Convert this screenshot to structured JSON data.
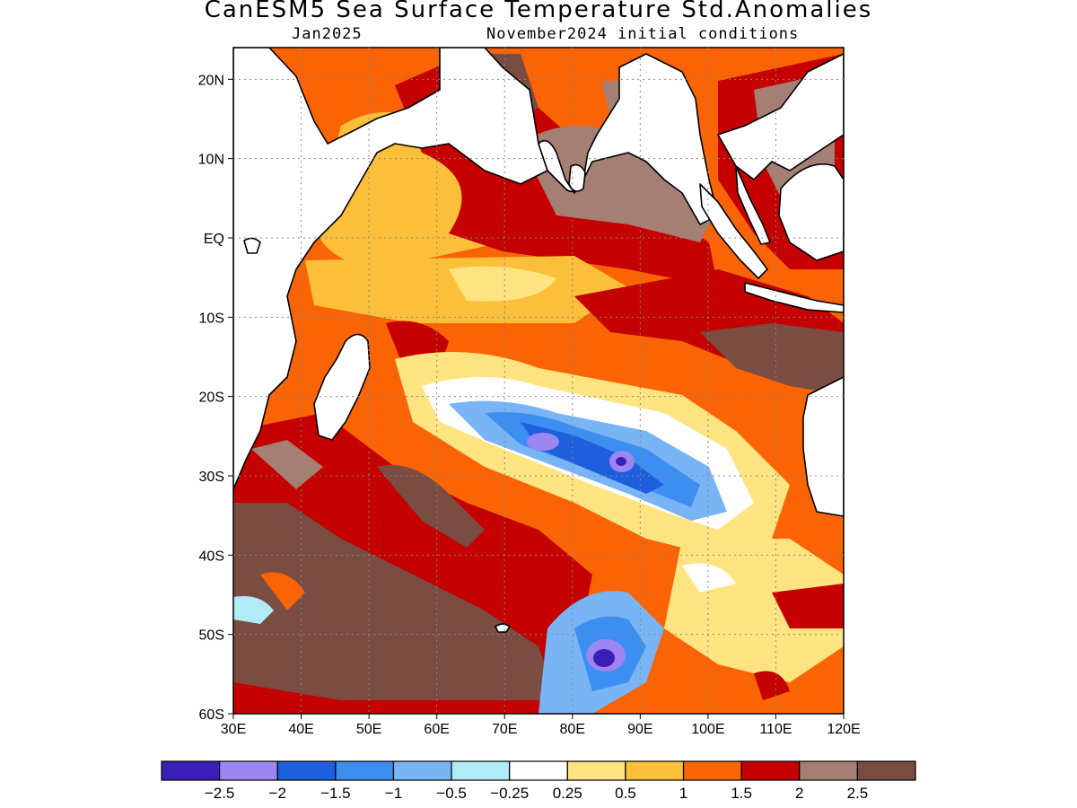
{
  "title": "CanESM5 Sea Surface Temperature Std.Anomalies",
  "subtitle_left": "Jan2025",
  "subtitle_right": "November2024 initial conditions",
  "map": {
    "lon_range": [
      30,
      120
    ],
    "lat_range": [
      -60,
      24
    ],
    "lon_ticks": [
      "30E",
      "40E",
      "50E",
      "60E",
      "70E",
      "80E",
      "90E",
      "100E",
      "110E",
      "120E"
    ],
    "lat_ticks": [
      "20N",
      "10N",
      "EQ",
      "10S",
      "20S",
      "30S",
      "40S",
      "50S",
      "60S"
    ],
    "grid": true,
    "gridline_style": "dotted"
  },
  "colorbar": {
    "colors": [
      "#3b1eb8",
      "#9d86f2",
      "#1d5fdd",
      "#3c8ff0",
      "#79b4f5",
      "#b0ecf7",
      "#ffffff",
      "#ffe481",
      "#fcbf39",
      "#fa6404",
      "#c40000",
      "#a57f74",
      "#7a4c42"
    ],
    "labels": [
      "−2.5",
      "−2",
      "−1.5",
      "−1",
      "−0.5",
      "−0.25",
      "0.25",
      "0.5",
      "1",
      "1.5",
      "2",
      "2.5"
    ]
  },
  "colors": {
    "land": "#ffffff",
    "coast": "#000000"
  }
}
